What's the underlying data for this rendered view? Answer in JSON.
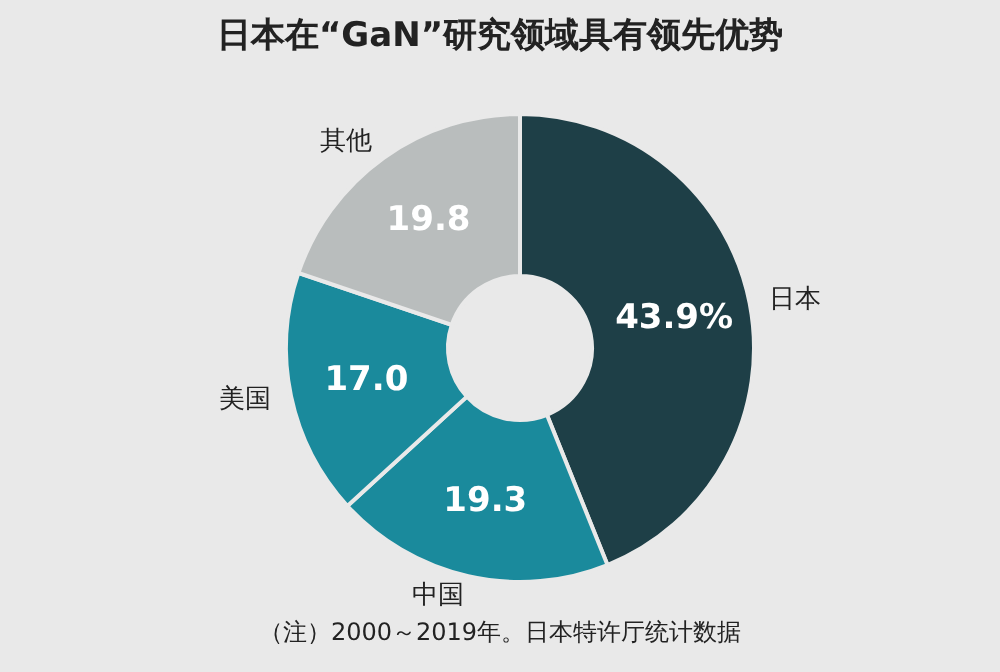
{
  "chart_data": {
    "type": "donut",
    "title": "日本在“GaN”研究领域具有领先优势",
    "categories": [
      "日本",
      "中国",
      "美国",
      "其他"
    ],
    "values": [
      43.9,
      19.3,
      17.0,
      19.8
    ],
    "colors": [
      "#1e3f47",
      "#1a8a9c",
      "#1a8a9c",
      "#b9bdbd"
    ],
    "value_labels": [
      "43.9%",
      "19.3",
      "17.0",
      "19.8"
    ],
    "legend": false,
    "annotations": [
      "（注）2000～2019年。日本特许厅统计数据"
    ]
  }
}
